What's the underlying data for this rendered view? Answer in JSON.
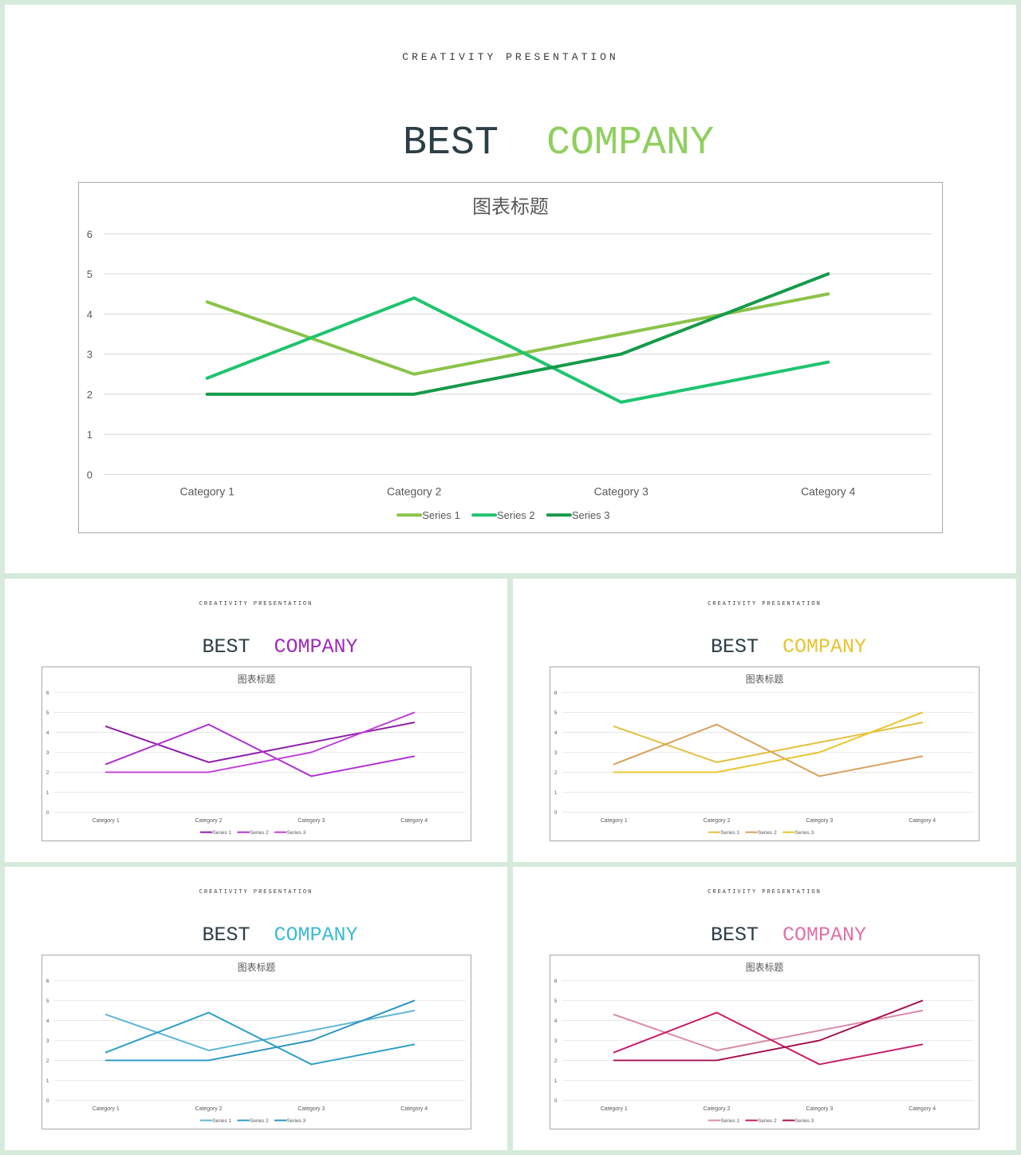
{
  "slides": [
    {
      "id": "main",
      "kicker": "CREATIVITY PRESENTATION",
      "headline_word1": "BEST",
      "headline_word2": "COMPANY",
      "accent": "#8fcf5f",
      "series_colors": [
        "#8bc34a",
        "#1fc46f",
        "#169a4a"
      ]
    },
    {
      "id": "purple",
      "kicker": "CREATIVITY PRESENTATION",
      "headline_word1": "BEST",
      "headline_word2": "COMPANY",
      "accent": "#a02ab8",
      "series_colors": [
        "#8e1ea8",
        "#b030d0",
        "#c040d8"
      ]
    },
    {
      "id": "yellow",
      "kicker": "CREATIVITY PRESENTATION",
      "headline_word1": "BEST",
      "headline_word2": "COMPANY",
      "accent": "#e8c430",
      "series_colors": [
        "#e3bf3c",
        "#d8a05a",
        "#e8c42a"
      ]
    },
    {
      "id": "blue",
      "kicker": "CREATIVITY PRESENTATION",
      "headline_word1": "BEST",
      "headline_word2": "COMPANY",
      "accent": "#3bbad6",
      "series_colors": [
        "#5eb6d6",
        "#2c9fc8",
        "#2a94c0"
      ]
    },
    {
      "id": "pink",
      "kicker": "CREATIVITY PRESENTATION",
      "headline_word1": "BEST",
      "headline_word2": "COMPANY",
      "accent": "#e070a8",
      "series_colors": [
        "#d98aa8",
        "#c81c6a",
        "#a4104e"
      ]
    }
  ],
  "chart_data": {
    "type": "line",
    "title": "图表标题",
    "categories": [
      "Category 1",
      "Category 2",
      "Category 3",
      "Category 4"
    ],
    "series": [
      {
        "name": "Series 1",
        "values": [
          4.3,
          2.5,
          3.5,
          4.5
        ]
      },
      {
        "name": "Series 2",
        "values": [
          2.4,
          4.4,
          1.8,
          2.8
        ]
      },
      {
        "name": "Series 3",
        "values": [
          2,
          2,
          3,
          5
        ]
      }
    ],
    "ylim": [
      0,
      6
    ],
    "yticks": [
      "0",
      "1",
      "2",
      "3",
      "4",
      "5",
      "6"
    ],
    "grid": true,
    "legend": "bottom"
  }
}
